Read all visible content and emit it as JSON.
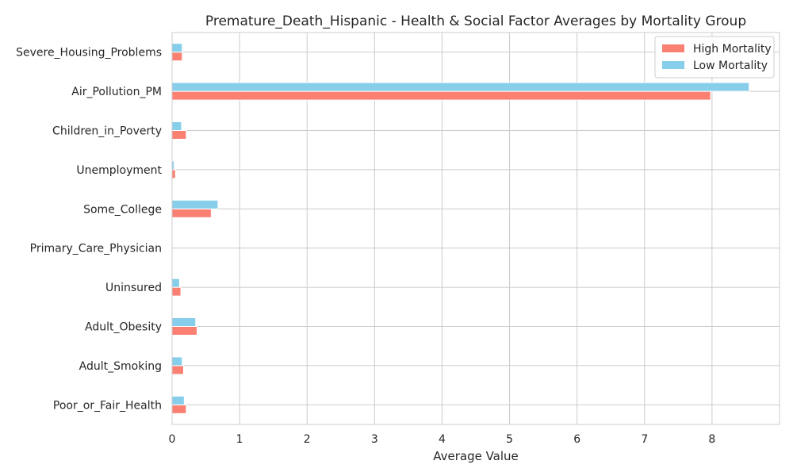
{
  "chart_data": {
    "type": "bar",
    "orientation": "horizontal",
    "title": "Premature_Death_Hispanic - Health & Social Factor Averages by Mortality Group",
    "xlabel": "Average Value",
    "ylabel": "",
    "xlim": [
      0,
      9
    ],
    "xticks": [
      "0",
      "1",
      "2",
      "3",
      "4",
      "5",
      "6",
      "7",
      "8"
    ],
    "grid": true,
    "legend_position": "top-right",
    "categories": [
      "Severe_Housing_Problems",
      "Air_Pollution_PM",
      "Children_in_Poverty",
      "Unemployment",
      "Some_College",
      "Primary_Care_Physician",
      "Uninsured",
      "Adult_Obesity",
      "Adult_Smoking",
      "Poor_or_Fair_Health"
    ],
    "series": [
      {
        "name": "High Mortality",
        "color": "#fa8072",
        "values": [
          0.15,
          7.98,
          0.21,
          0.05,
          0.58,
          0.0005,
          0.13,
          0.37,
          0.17,
          0.21
        ]
      },
      {
        "name": "Low Mortality",
        "color": "#87ceeb",
        "values": [
          0.15,
          8.55,
          0.14,
          0.03,
          0.68,
          0.0007,
          0.11,
          0.35,
          0.15,
          0.18
        ]
      }
    ]
  }
}
